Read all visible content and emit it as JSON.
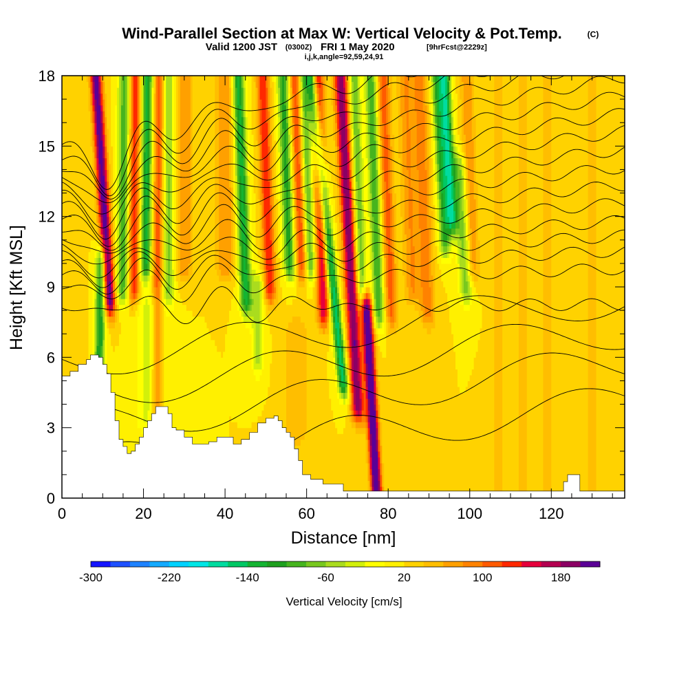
{
  "chart_data": {
    "type": "heatmap",
    "title": "Wind-Parallel Section at Max W: Vertical Velocity & Pot.Temp.",
    "title_mark": "(C)",
    "subtitle_valid": "Valid 1200 JST",
    "subtitle_utc": "(0300Z)",
    "subtitle_date": "FRI 1 May 2020",
    "subtitle_fcst": "[9hrFcst@2229z]",
    "subtitle_indices": "i,j,k,angle=92,59,24,91",
    "xlabel": "Distance [nm]",
    "ylabel": "Height [Kft MSL]",
    "xlim": [
      0,
      138
    ],
    "ylim": [
      0,
      18
    ],
    "x_ticks": [
      {
        "value": 0,
        "label": "0"
      },
      {
        "value": 20,
        "label": "20"
      },
      {
        "value": 40,
        "label": "40"
      },
      {
        "value": 60,
        "label": "60"
      },
      {
        "value": 80,
        "label": "80"
      },
      {
        "value": 100,
        "label": "100"
      },
      {
        "value": 120,
        "label": "120"
      }
    ],
    "y_ticks": [
      {
        "value": 0,
        "label": "0"
      },
      {
        "value": 3,
        "label": "3"
      },
      {
        "value": 6,
        "label": "6"
      },
      {
        "value": 9,
        "label": "9"
      },
      {
        "value": 12,
        "label": "12"
      },
      {
        "value": 15,
        "label": "15"
      },
      {
        "value": 18,
        "label": "18"
      }
    ],
    "colorbar": {
      "label": "Vertical Velocity [cm/s]",
      "min": -300,
      "max": 220,
      "step": 20,
      "tick_labels": [
        {
          "value": -300,
          "label": "-300"
        },
        {
          "value": -220,
          "label": "-220"
        },
        {
          "value": -140,
          "label": "-140"
        },
        {
          "value": -60,
          "label": "-60"
        },
        {
          "value": 20,
          "label": "20"
        },
        {
          "value": 100,
          "label": "100"
        },
        {
          "value": 180,
          "label": "180"
        }
      ],
      "colors": [
        "#1414ff",
        "#1e50ff",
        "#1e82ff",
        "#14aaff",
        "#00d2ff",
        "#00e6e6",
        "#00dca0",
        "#00c864",
        "#14b432",
        "#1ea01e",
        "#46b41e",
        "#78c81e",
        "#aadc1e",
        "#d2f00a",
        "#ffff00",
        "#fff000",
        "#ffd200",
        "#ffbe00",
        "#ffa000",
        "#ff8200",
        "#ff5a00",
        "#ff2800",
        "#e6003c",
        "#b40050",
        "#8c0064",
        "#5a0096"
      ]
    },
    "theta_contour_base_heights_kft": [
      2.5,
      4.2,
      5.6,
      7.0,
      8.2,
      9.4,
      10.0,
      10.5,
      11.0,
      11.6,
      12.2,
      12.8,
      13.4,
      14.0,
      14.6,
      15.2,
      15.8,
      16.4,
      17.0,
      17.6
    ],
    "terrain_kft": [
      [
        0,
        5.2
      ],
      [
        2,
        5.4
      ],
      [
        4,
        5.7
      ],
      [
        6,
        5.9
      ],
      [
        7,
        6.1
      ],
      [
        9,
        6.0
      ],
      [
        10,
        5.7
      ],
      [
        11,
        5.3
      ],
      [
        12,
        4.5
      ],
      [
        13,
        3.3
      ],
      [
        14,
        2.5
      ],
      [
        15,
        2.2
      ],
      [
        16,
        1.9
      ],
      [
        17,
        2.0
      ],
      [
        18,
        2.3
      ],
      [
        19,
        2.6
      ],
      [
        20,
        3.0
      ],
      [
        21,
        3.3
      ],
      [
        22,
        3.6
      ],
      [
        23,
        3.9
      ],
      [
        25,
        3.9
      ],
      [
        26,
        3.6
      ],
      [
        27,
        3.0
      ],
      [
        28,
        2.9
      ],
      [
        30,
        2.6
      ],
      [
        32,
        2.3
      ],
      [
        34,
        2.3
      ],
      [
        36,
        2.4
      ],
      [
        38,
        2.6
      ],
      [
        40,
        2.6
      ],
      [
        42,
        2.3
      ],
      [
        44,
        2.5
      ],
      [
        46,
        2.8
      ],
      [
        48,
        3.2
      ],
      [
        50,
        3.4
      ],
      [
        52,
        3.5
      ],
      [
        53,
        3.3
      ],
      [
        54,
        3.0
      ],
      [
        55,
        2.8
      ],
      [
        56,
        2.6
      ],
      [
        57,
        2.1
      ],
      [
        58,
        1.6
      ],
      [
        59,
        1.0
      ],
      [
        60,
        1.0
      ],
      [
        61,
        0.8
      ],
      [
        63,
        0.8
      ],
      [
        64,
        0.6
      ],
      [
        68,
        0.6
      ],
      [
        69,
        0.3
      ],
      [
        122,
        0.3
      ],
      [
        123,
        0.7
      ],
      [
        124,
        1.0
      ],
      [
        126,
        1.0
      ],
      [
        127,
        0.3
      ],
      [
        138,
        0.3
      ]
    ]
  }
}
